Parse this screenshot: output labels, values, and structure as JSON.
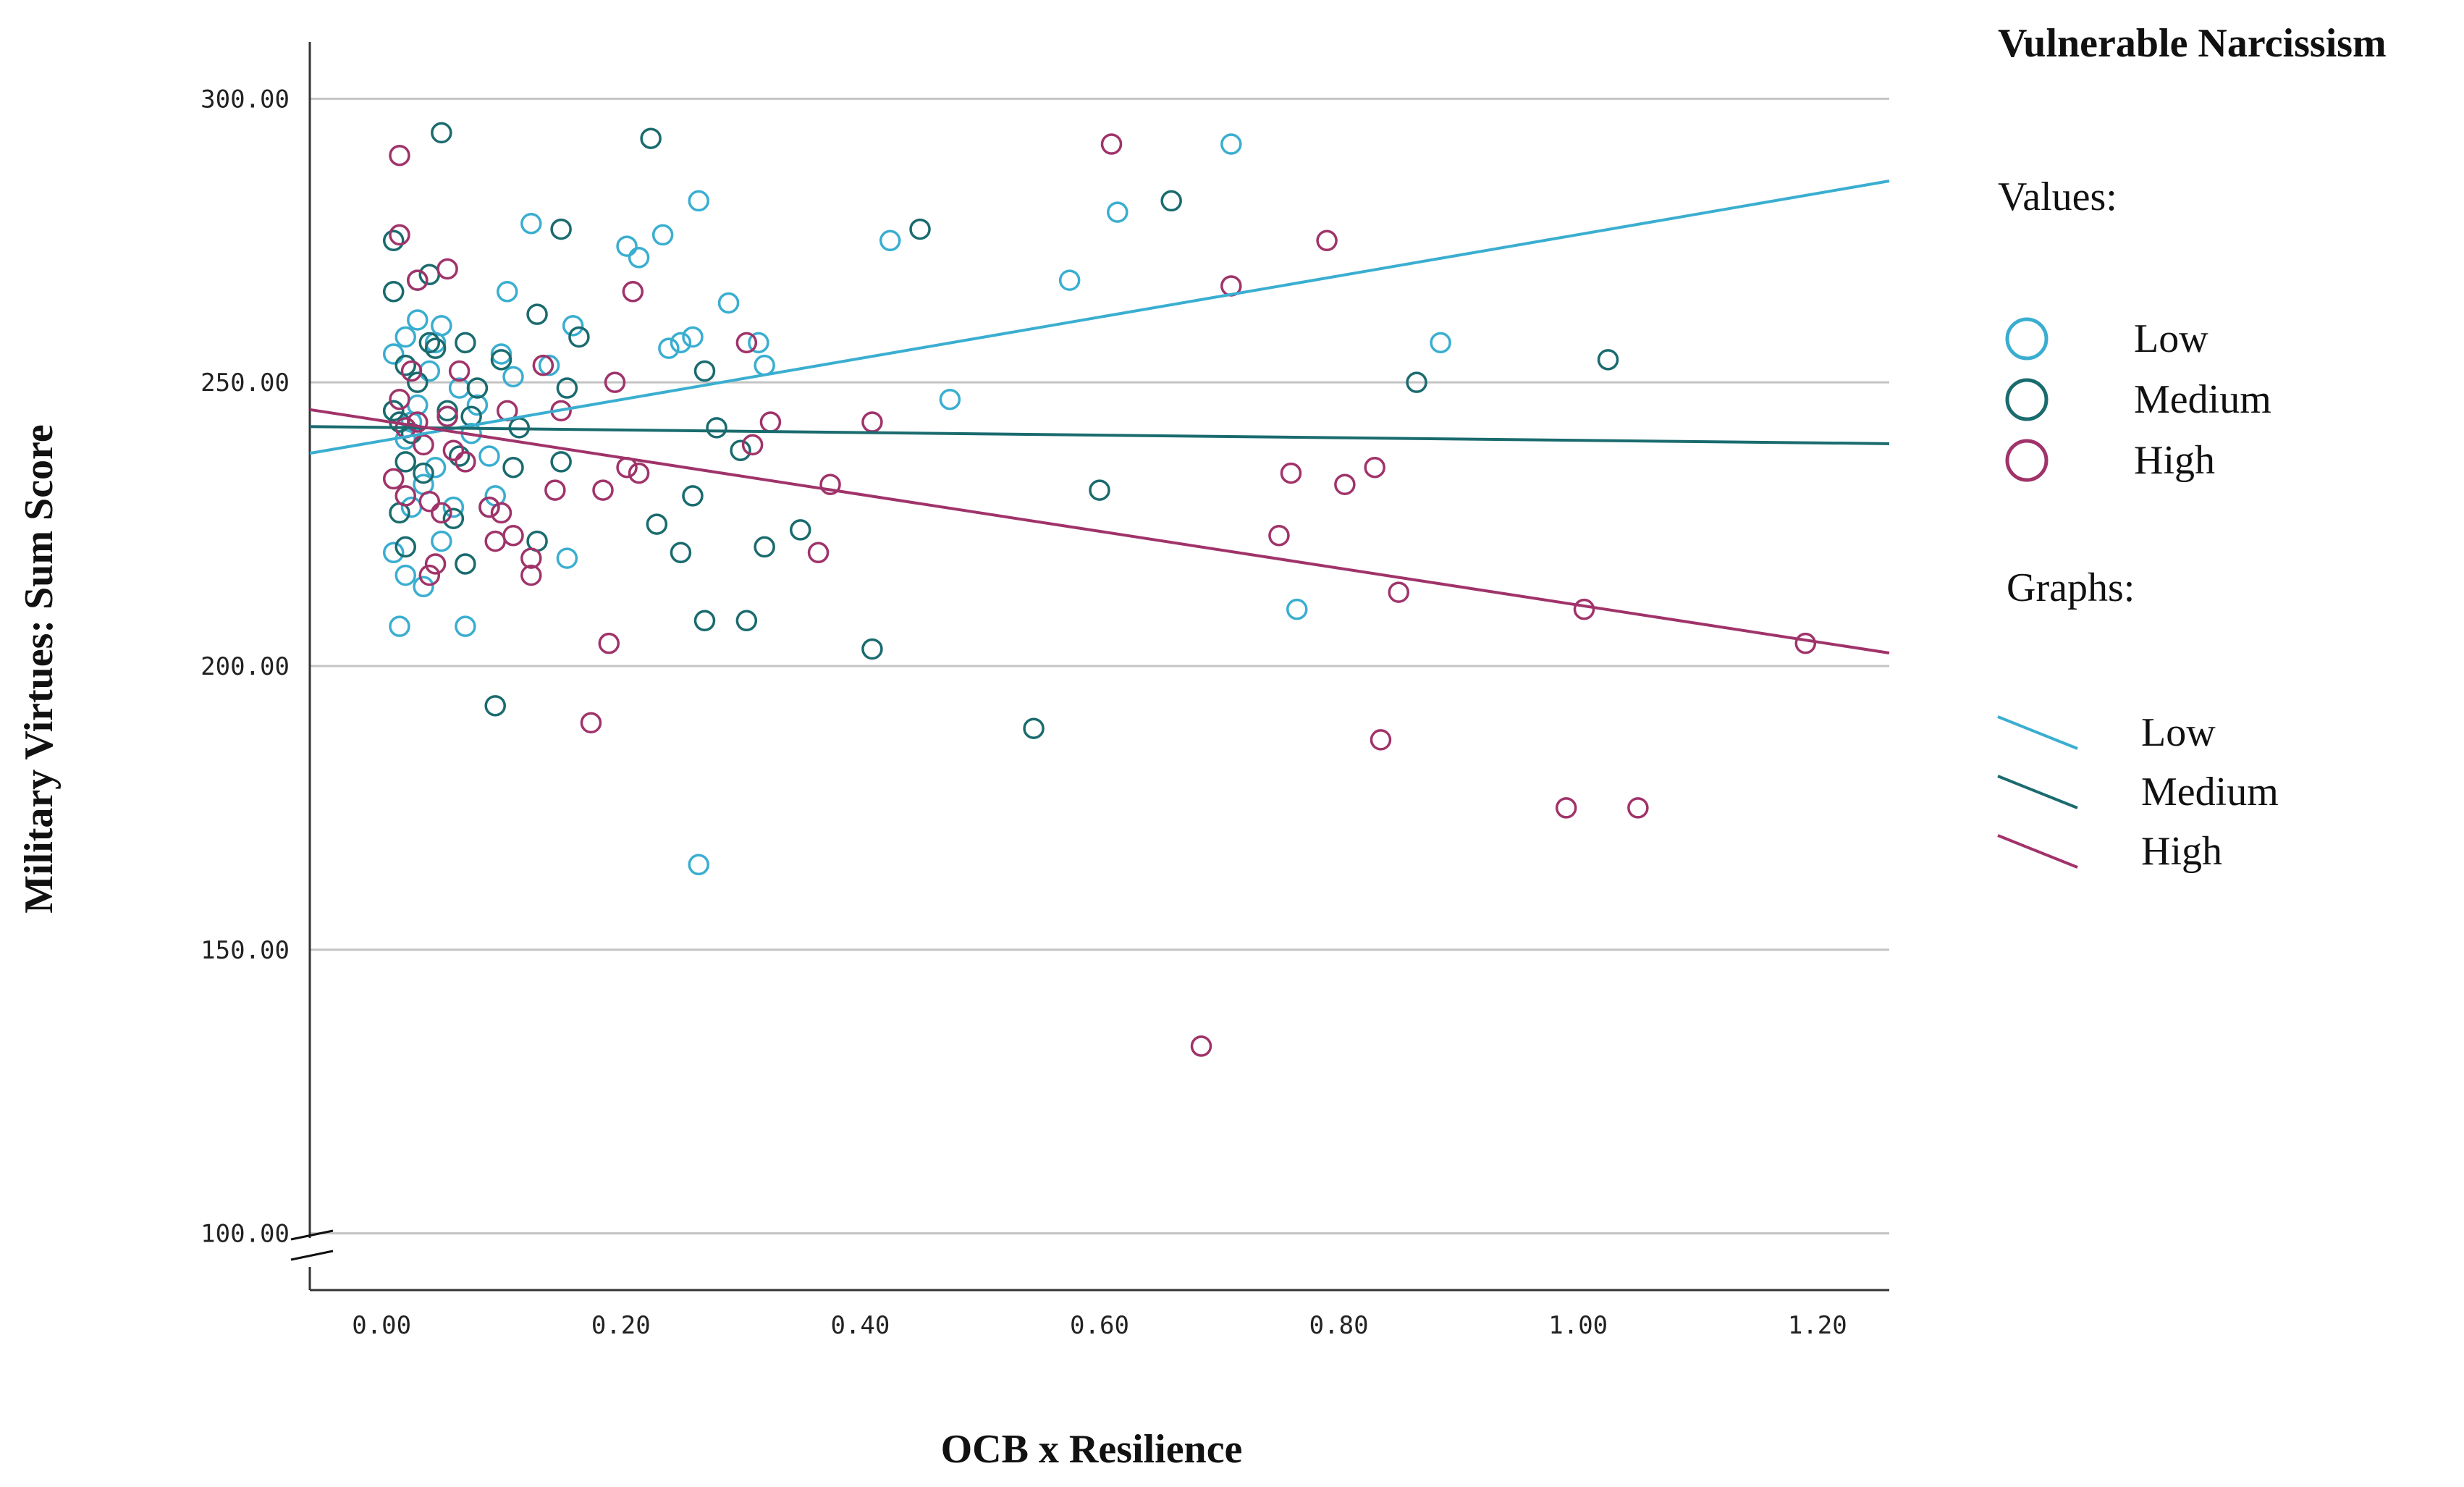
{
  "chart_data": {
    "type": "scatter",
    "title": "",
    "xlabel": "OCB x Resilience",
    "ylabel": "Military Virtues: Sum Score",
    "xlim": [
      -0.06,
      1.26
    ],
    "ylim": [
      90,
      310
    ],
    "axis_break": true,
    "grid": "horizontal",
    "x_ticks": [
      {
        "value": 0.0,
        "label": "0.00"
      },
      {
        "value": 0.2,
        "label": "0.20"
      },
      {
        "value": 0.4,
        "label": "0.40"
      },
      {
        "value": 0.6,
        "label": "0.60"
      },
      {
        "value": 0.8,
        "label": "0.80"
      },
      {
        "value": 1.0,
        "label": "1.00"
      },
      {
        "value": 1.2,
        "label": "1.20"
      }
    ],
    "y_ticks": [
      {
        "value": 100,
        "label": "100.00"
      },
      {
        "value": 150,
        "label": "150.00"
      },
      {
        "value": 200,
        "label": "200.00"
      },
      {
        "value": 250,
        "label": "250.00"
      },
      {
        "value": 300,
        "label": "300.00"
      }
    ],
    "legend": {
      "title": "Vulnerable Narcissism",
      "values_heading": "Values:",
      "graphs_heading": "Graphs:",
      "placement": "right",
      "entries": [
        {
          "label": "Low",
          "color": "#3aaed0"
        },
        {
          "label": "Medium",
          "color": "#1a6b6e"
        },
        {
          "label": "High",
          "color": "#a0336a"
        }
      ]
    },
    "series": [
      {
        "name": "Low",
        "color": "#3aaed0",
        "fit_line": {
          "x": [
            -0.06,
            1.26
          ],
          "y": [
            237.5,
            285.5
          ]
        },
        "points": [
          [
            0.01,
            255
          ],
          [
            0.01,
            245
          ],
          [
            0.01,
            220
          ],
          [
            0.015,
            207
          ],
          [
            0.02,
            216
          ],
          [
            0.02,
            240
          ],
          [
            0.02,
            258
          ],
          [
            0.025,
            228
          ],
          [
            0.025,
            243
          ],
          [
            0.03,
            261
          ],
          [
            0.03,
            246
          ],
          [
            0.035,
            232
          ],
          [
            0.035,
            214
          ],
          [
            0.04,
            252
          ],
          [
            0.045,
            257
          ],
          [
            0.045,
            235
          ],
          [
            0.05,
            260
          ],
          [
            0.05,
            222
          ],
          [
            0.055,
            244
          ],
          [
            0.06,
            228
          ],
          [
            0.065,
            249
          ],
          [
            0.07,
            207
          ],
          [
            0.075,
            241
          ],
          [
            0.08,
            246
          ],
          [
            0.09,
            237
          ],
          [
            0.095,
            230
          ],
          [
            0.1,
            255
          ],
          [
            0.105,
            266
          ],
          [
            0.11,
            251
          ],
          [
            0.125,
            278
          ],
          [
            0.14,
            253
          ],
          [
            0.155,
            219
          ],
          [
            0.16,
            260
          ],
          [
            0.205,
            274
          ],
          [
            0.215,
            272
          ],
          [
            0.235,
            276
          ],
          [
            0.24,
            256
          ],
          [
            0.25,
            257
          ],
          [
            0.26,
            258
          ],
          [
            0.265,
            282
          ],
          [
            0.265,
            165
          ],
          [
            0.29,
            264
          ],
          [
            0.315,
            257
          ],
          [
            0.32,
            253
          ],
          [
            0.425,
            275
          ],
          [
            0.475,
            247
          ],
          [
            0.575,
            268
          ],
          [
            0.615,
            280
          ],
          [
            0.71,
            292
          ],
          [
            0.765,
            210
          ],
          [
            0.885,
            257
          ]
        ]
      },
      {
        "name": "Medium",
        "color": "#1a6b6e",
        "fit_line": {
          "x": [
            -0.06,
            1.26
          ],
          "y": [
            242.2,
            239.2
          ]
        },
        "points": [
          [
            0.01,
            275
          ],
          [
            0.01,
            266
          ],
          [
            0.01,
            245
          ],
          [
            0.015,
            243
          ],
          [
            0.015,
            227
          ],
          [
            0.02,
            253
          ],
          [
            0.02,
            236
          ],
          [
            0.02,
            221
          ],
          [
            0.025,
            241
          ],
          [
            0.03,
            268
          ],
          [
            0.03,
            250
          ],
          [
            0.035,
            234
          ],
          [
            0.04,
            257
          ],
          [
            0.04,
            269
          ],
          [
            0.045,
            256
          ],
          [
            0.05,
            294
          ],
          [
            0.055,
            245
          ],
          [
            0.06,
            226
          ],
          [
            0.065,
            237
          ],
          [
            0.07,
            257
          ],
          [
            0.07,
            218
          ],
          [
            0.075,
            244
          ],
          [
            0.08,
            249
          ],
          [
            0.09,
            228
          ],
          [
            0.095,
            193
          ],
          [
            0.1,
            254
          ],
          [
            0.11,
            235
          ],
          [
            0.115,
            242
          ],
          [
            0.13,
            262
          ],
          [
            0.13,
            222
          ],
          [
            0.15,
            277
          ],
          [
            0.15,
            236
          ],
          [
            0.155,
            249
          ],
          [
            0.165,
            258
          ],
          [
            0.225,
            293
          ],
          [
            0.23,
            225
          ],
          [
            0.25,
            220
          ],
          [
            0.26,
            230
          ],
          [
            0.27,
            252
          ],
          [
            0.27,
            208
          ],
          [
            0.28,
            242
          ],
          [
            0.3,
            238
          ],
          [
            0.305,
            208
          ],
          [
            0.32,
            221
          ],
          [
            0.35,
            224
          ],
          [
            0.41,
            203
          ],
          [
            0.45,
            277
          ],
          [
            0.545,
            189
          ],
          [
            0.6,
            231
          ],
          [
            0.66,
            282
          ],
          [
            0.865,
            250
          ],
          [
            1.025,
            254
          ]
        ]
      },
      {
        "name": "High",
        "color": "#a0336a",
        "fit_line": {
          "x": [
            -0.06,
            1.26
          ],
          "y": [
            245.2,
            202.3
          ]
        },
        "points": [
          [
            0.01,
            233
          ],
          [
            0.015,
            290
          ],
          [
            0.015,
            276
          ],
          [
            0.015,
            247
          ],
          [
            0.02,
            242
          ],
          [
            0.02,
            230
          ],
          [
            0.025,
            252
          ],
          [
            0.03,
            243
          ],
          [
            0.03,
            268
          ],
          [
            0.035,
            239
          ],
          [
            0.04,
            229
          ],
          [
            0.04,
            216
          ],
          [
            0.045,
            218
          ],
          [
            0.05,
            227
          ],
          [
            0.055,
            244
          ],
          [
            0.055,
            270
          ],
          [
            0.06,
            238
          ],
          [
            0.065,
            252
          ],
          [
            0.07,
            236
          ],
          [
            0.09,
            228
          ],
          [
            0.095,
            222
          ],
          [
            0.1,
            227
          ],
          [
            0.105,
            245
          ],
          [
            0.11,
            223
          ],
          [
            0.125,
            219
          ],
          [
            0.125,
            216
          ],
          [
            0.135,
            253
          ],
          [
            0.145,
            231
          ],
          [
            0.15,
            245
          ],
          [
            0.175,
            190
          ],
          [
            0.185,
            231
          ],
          [
            0.19,
            204
          ],
          [
            0.195,
            250
          ],
          [
            0.205,
            235
          ],
          [
            0.21,
            266
          ],
          [
            0.215,
            234
          ],
          [
            0.305,
            257
          ],
          [
            0.31,
            239
          ],
          [
            0.325,
            243
          ],
          [
            0.365,
            220
          ],
          [
            0.375,
            232
          ],
          [
            0.41,
            243
          ],
          [
            0.61,
            292
          ],
          [
            0.685,
            133
          ],
          [
            0.71,
            267
          ],
          [
            0.75,
            223
          ],
          [
            0.76,
            234
          ],
          [
            0.79,
            275
          ],
          [
            0.805,
            232
          ],
          [
            0.83,
            235
          ],
          [
            0.835,
            187
          ],
          [
            0.85,
            213
          ],
          [
            0.99,
            175
          ],
          [
            1.005,
            210
          ],
          [
            1.05,
            175
          ],
          [
            1.19,
            204
          ]
        ]
      }
    ]
  }
}
